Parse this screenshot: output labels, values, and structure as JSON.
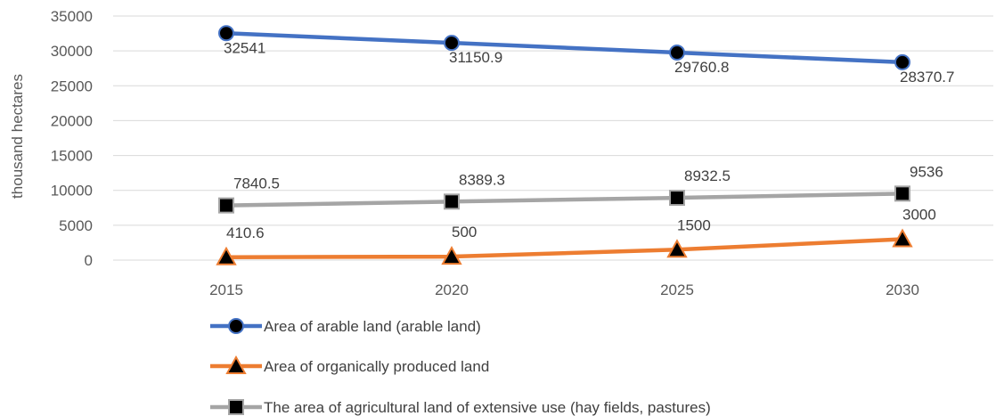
{
  "chart_data": {
    "type": "line",
    "title": "",
    "xlabel": "",
    "ylabel": "thousand hectares",
    "ylim": [
      0,
      35000
    ],
    "y_ticks": [
      0,
      5000,
      10000,
      15000,
      20000,
      25000,
      30000,
      35000
    ],
    "grid": true,
    "legend_position": "bottom",
    "categories": [
      "2015",
      "2020",
      "2025",
      "2030"
    ],
    "series": [
      {
        "name": "Area of arable land (arable land)",
        "values": [
          32541,
          31150.9,
          29760.8,
          28370.7
        ],
        "labels": [
          "32541",
          "31150.9",
          "29760.8",
          "28370.7"
        ],
        "color": "#4472C4",
        "marker": "circle"
      },
      {
        "name": "Area of organically produced land",
        "values": [
          410.6,
          500,
          1500,
          3000
        ],
        "labels": [
          "410.6",
          "500",
          "1500",
          "3000"
        ],
        "color": "#ED7D31",
        "marker": "triangle"
      },
      {
        "name": "The area of agricultural land of extensive use (hay fields, pastures)",
        "values": [
          7840.5,
          8389.3,
          8932.5,
          9536
        ],
        "labels": [
          "7840.5",
          "8389.3",
          "8932.5",
          "9536"
        ],
        "color": "#A5A5A5",
        "marker": "square"
      }
    ]
  }
}
